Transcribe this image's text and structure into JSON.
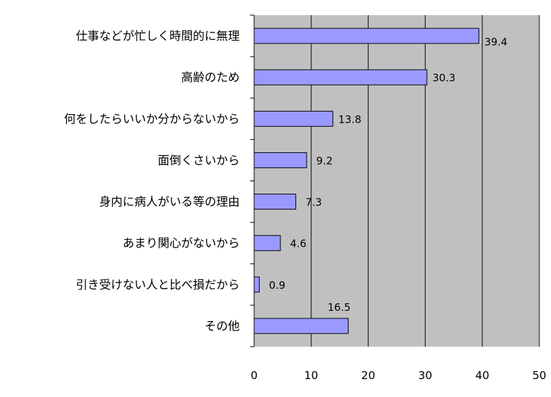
{
  "chart_data": {
    "type": "bar",
    "orientation": "horizontal",
    "categories": [
      "仕事などが忙しく時間的に無理",
      "高齢のため",
      "何をしたらいいか分からないから",
      "面倒くさいから",
      "身内に病人がいる等の理由",
      "あまり関心がないから",
      "引き受けない人と比べ損だから",
      "その他"
    ],
    "values": [
      39.4,
      30.3,
      13.8,
      9.2,
      7.3,
      4.6,
      0.9,
      16.5
    ],
    "value_labels": [
      "39.4",
      "30.3",
      "13.8",
      "9.2",
      "7.3",
      "4.6",
      "0.9",
      "16.5"
    ],
    "title": "",
    "xlabel": "",
    "ylabel": "",
    "xlim": [
      0,
      50
    ],
    "xticks": [
      "0",
      "10",
      "20",
      "30",
      "40",
      "50"
    ],
    "grid": true,
    "legend": "none",
    "colors": {
      "plot_background": "#c0c0c0",
      "bar_fill": "#9999ff",
      "bar_stroke": "#000000",
      "gridline": "#000000"
    }
  }
}
